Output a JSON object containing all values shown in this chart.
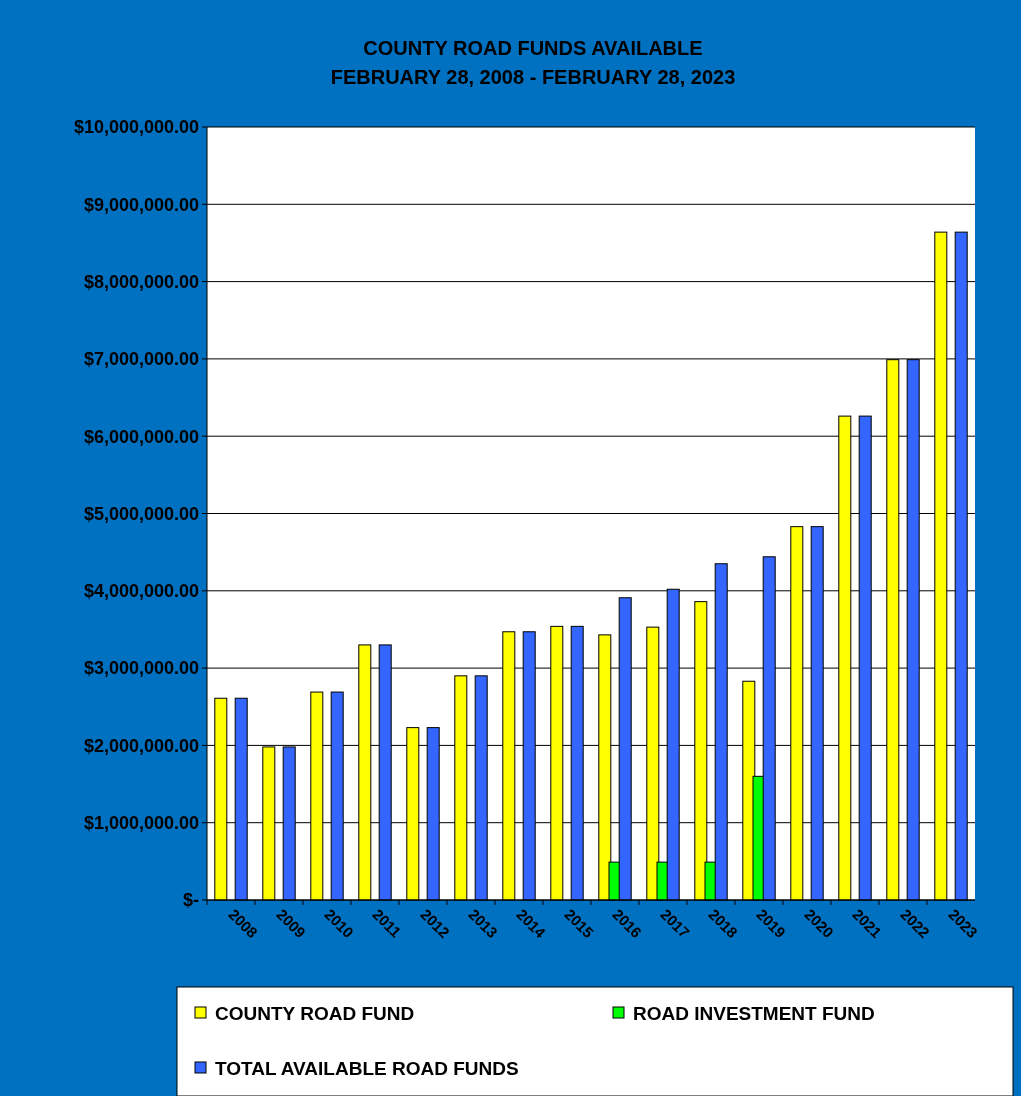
{
  "chart_data": {
    "type": "bar",
    "title": "COUNTY ROAD FUNDS AVAILABLE",
    "subtitle": "FEBRUARY 28, 2008 - FEBRUARY 28, 2023",
    "categories": [
      "2008",
      "2009",
      "2010",
      "2011",
      "2012",
      "2013",
      "2014",
      "2015",
      "2016",
      "2017",
      "2018",
      "2019",
      "2020",
      "2021",
      "2022",
      "2023"
    ],
    "series": [
      {
        "name": "COUNTY ROAD FUND",
        "color": "#ffff00",
        "values": [
          2610000,
          1980000,
          2690000,
          3300000,
          2230000,
          2900000,
          3470000,
          3540000,
          3430000,
          3530000,
          3860000,
          2830000,
          4830000,
          6260000,
          6990000,
          8640000
        ]
      },
      {
        "name": "ROAD INVESTMENT FUND",
        "color": "#00ff00",
        "values": [
          null,
          null,
          null,
          null,
          null,
          null,
          null,
          null,
          490000,
          490000,
          490000,
          1600000,
          null,
          null,
          null,
          null
        ]
      },
      {
        "name": "TOTAL AVAILABLE ROAD FUNDS",
        "color": "#3366ff",
        "values": [
          2610000,
          1980000,
          2690000,
          3300000,
          2230000,
          2900000,
          3470000,
          3540000,
          3910000,
          4020000,
          4350000,
          4440000,
          4830000,
          6260000,
          6990000,
          8640000
        ]
      }
    ],
    "ylim": [
      0,
      10000000
    ],
    "yticks": [
      {
        "value": 0,
        "label": "$-"
      },
      {
        "value": 1000000,
        "label": "$1,000,000.00"
      },
      {
        "value": 2000000,
        "label": "$2,000,000.00"
      },
      {
        "value": 3000000,
        "label": "$3,000,000.00"
      },
      {
        "value": 4000000,
        "label": "$4,000,000.00"
      },
      {
        "value": 5000000,
        "label": "$5,000,000.00"
      },
      {
        "value": 6000000,
        "label": "$6,000,000.00"
      },
      {
        "value": 7000000,
        "label": "$7,000,000.00"
      },
      {
        "value": 8000000,
        "label": "$8,000,000.00"
      },
      {
        "value": 9000000,
        "label": "$9,000,000.00"
      },
      {
        "value": 10000000,
        "label": "$10,000,000.00"
      }
    ],
    "grid": "y",
    "legend": "bottom"
  }
}
